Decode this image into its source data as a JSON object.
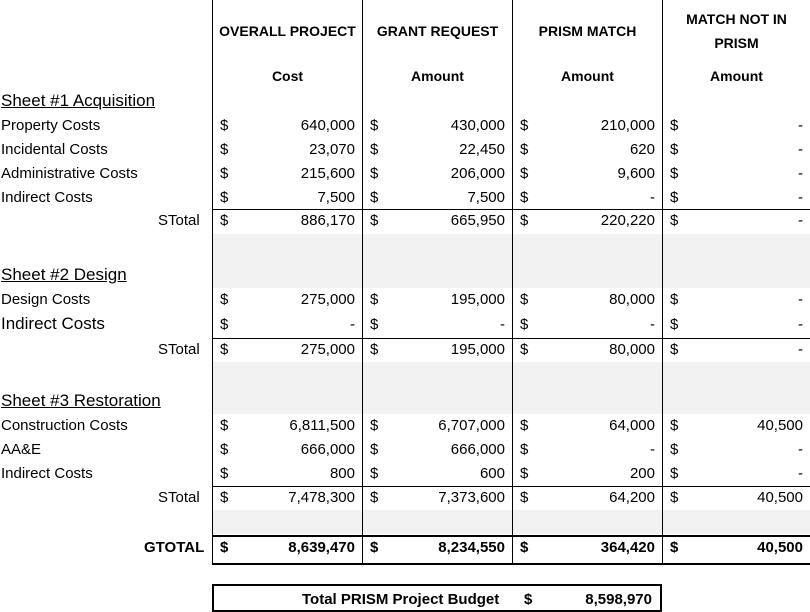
{
  "headers": {
    "overall": {
      "title": "OVERALL PROJECT",
      "sub": "Cost"
    },
    "grant": {
      "title": "GRANT REQUEST",
      "sub": "Amount"
    },
    "prism": {
      "title": "PRISM MATCH",
      "sub": "Amount"
    },
    "notprism": {
      "title1": "MATCH NOT IN",
      "title2": "PRISM",
      "sub": "Amount"
    }
  },
  "currency_symbol": "$",
  "stotal_label": "STotal",
  "sheets": [
    {
      "title": "Sheet #1 Acquisition",
      "rows": [
        {
          "label": "Property Costs",
          "values": [
            "640,000",
            "430,000",
            "210,000",
            "-"
          ]
        },
        {
          "label": "Incidental Costs",
          "values": [
            "23,070",
            "22,450",
            "620",
            "-"
          ]
        },
        {
          "label": "Administrative Costs",
          "values": [
            "215,600",
            "206,000",
            "9,600",
            "-"
          ]
        },
        {
          "label": "Indirect Costs",
          "values": [
            "7,500",
            "7,500",
            "-",
            "-"
          ]
        }
      ],
      "stotal": [
        "886,170",
        "665,950",
        "220,220",
        "-"
      ]
    },
    {
      "title": "Sheet #2 Design",
      "rows": [
        {
          "label": "Design Costs",
          "values": [
            "275,000",
            "195,000",
            "80,000",
            "-"
          ]
        },
        {
          "label": "Indirect Costs",
          "values": [
            "-",
            "-",
            "-",
            "-"
          ]
        }
      ],
      "stotal": [
        "275,000",
        "195,000",
        "80,000",
        "-"
      ]
    },
    {
      "title": "Sheet #3 Restoration",
      "rows": [
        {
          "label": "Construction Costs",
          "values": [
            "6,811,500",
            "6,707,000",
            "64,000",
            "40,500"
          ]
        },
        {
          "label": "AA&E",
          "values": [
            "666,000",
            "666,000",
            "-",
            "-"
          ]
        },
        {
          "label": "Indirect Costs",
          "values": [
            "800",
            "600",
            "200",
            "-"
          ]
        }
      ],
      "stotal": [
        "7,478,300",
        "7,373,600",
        "64,200",
        "40,500"
      ]
    }
  ],
  "gtotal": {
    "label": "GTOTAL",
    "values": [
      "8,639,470",
      "8,234,550",
      "364,420",
      "40,500"
    ]
  },
  "budget": {
    "label": "Total PRISM Project Budget",
    "value": "8,598,970"
  }
}
